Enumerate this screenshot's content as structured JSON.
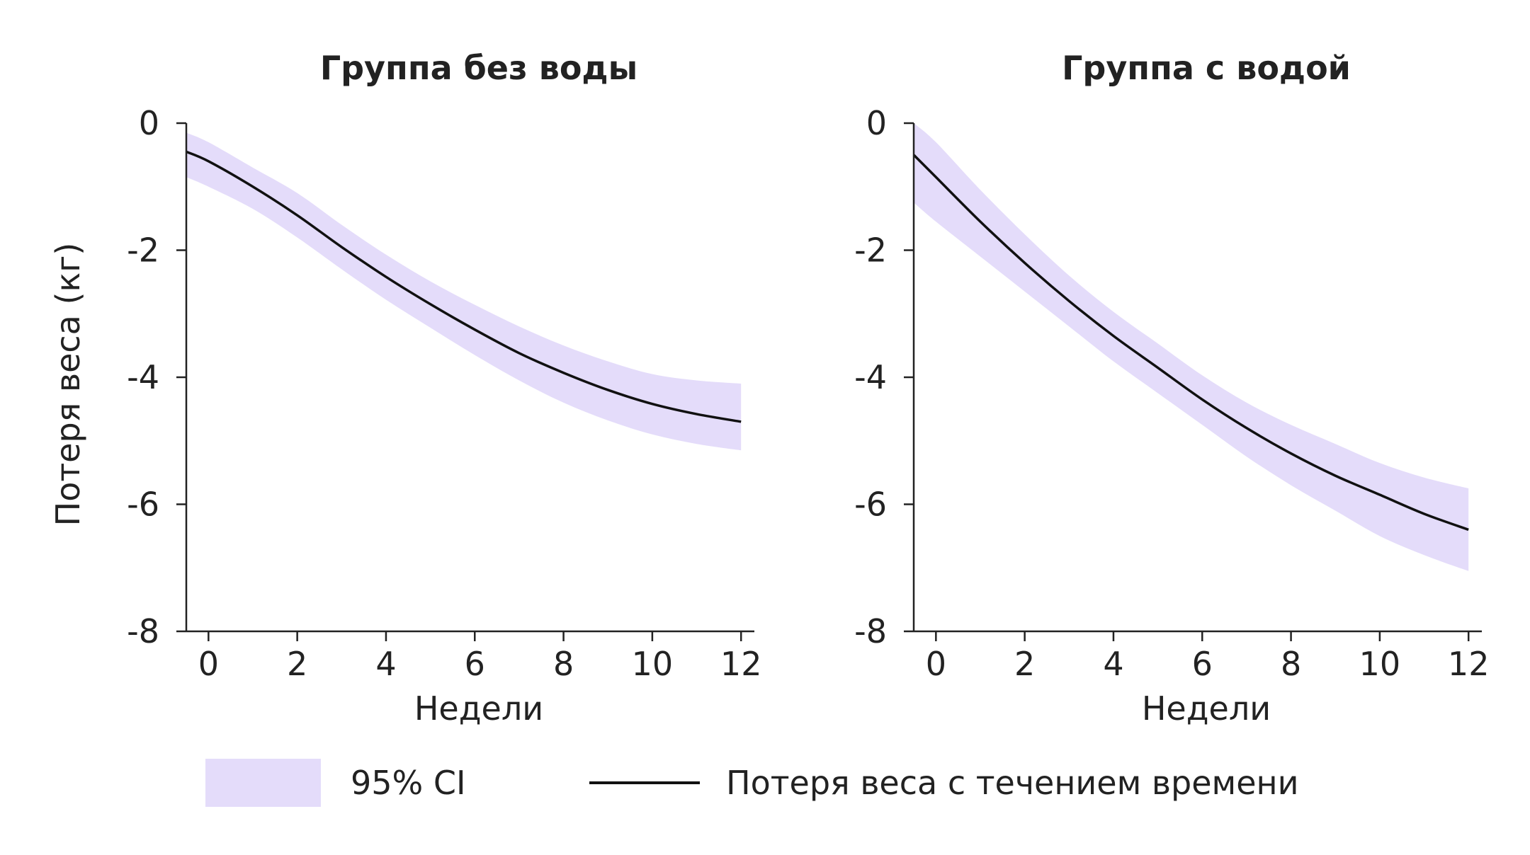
{
  "chart_data": [
    {
      "type": "line",
      "title": "Группа без воды",
      "xlabel": "Недели",
      "ylabel": "Потеря веса (кг)",
      "xlim": [
        -0.5,
        12.3
      ],
      "ylim": [
        -8,
        0
      ],
      "xticks": [
        "0",
        "2",
        "4",
        "6",
        "8",
        "10",
        "12"
      ],
      "yticks": [
        "0",
        "-2",
        "-4",
        "-6",
        "-8"
      ],
      "grid": false,
      "series": [
        {
          "name": "Потеря веса с течением времени",
          "x": [
            -0.5,
            0,
            1,
            2,
            3,
            4,
            5,
            6,
            7,
            8,
            9,
            10,
            11,
            12
          ],
          "y": [
            -0.45,
            -0.6,
            -1.0,
            -1.45,
            -1.95,
            -2.42,
            -2.85,
            -3.25,
            -3.62,
            -3.93,
            -4.2,
            -4.42,
            -4.58,
            -4.7
          ],
          "ci_lower": [
            -0.85,
            -1.0,
            -1.35,
            -1.8,
            -2.3,
            -2.78,
            -3.22,
            -3.65,
            -4.05,
            -4.4,
            -4.68,
            -4.9,
            -5.05,
            -5.15
          ],
          "ci_upper": [
            -0.15,
            -0.3,
            -0.7,
            -1.1,
            -1.6,
            -2.07,
            -2.49,
            -2.86,
            -3.2,
            -3.5,
            -3.75,
            -3.95,
            -4.05,
            -4.1
          ]
        }
      ]
    },
    {
      "type": "line",
      "title": "Группа с водой",
      "xlabel": "Недели",
      "ylabel": "",
      "xlim": [
        -0.5,
        12.3
      ],
      "ylim": [
        -8,
        0
      ],
      "xticks": [
        "0",
        "2",
        "4",
        "6",
        "8",
        "10",
        "12"
      ],
      "yticks": [
        "0",
        "-2",
        "-4",
        "-6",
        "-8"
      ],
      "grid": false,
      "series": [
        {
          "name": "Потеря веса с течением времени",
          "x": [
            -0.5,
            0,
            1,
            2,
            3,
            4,
            5,
            6,
            7,
            8,
            9,
            10,
            11,
            12
          ],
          "y": [
            -0.5,
            -0.85,
            -1.55,
            -2.2,
            -2.8,
            -3.35,
            -3.85,
            -4.35,
            -4.8,
            -5.2,
            -5.55,
            -5.85,
            -6.15,
            -6.4
          ],
          "ci_lower": [
            -1.25,
            -1.55,
            -2.1,
            -2.65,
            -3.2,
            -3.75,
            -4.25,
            -4.75,
            -5.25,
            -5.7,
            -6.1,
            -6.5,
            -6.8,
            -7.05
          ],
          "ci_upper": [
            0.0,
            -0.3,
            -1.05,
            -1.75,
            -2.4,
            -2.97,
            -3.47,
            -3.97,
            -4.4,
            -4.75,
            -5.05,
            -5.35,
            -5.58,
            -5.75
          ]
        }
      ]
    }
  ],
  "legend": {
    "position": "bottom",
    "ci_label": "95% CI",
    "line_label": "Потеря веса с течением времени"
  },
  "colors": {
    "ci_fill": "#e4dcfa",
    "line": "#111111",
    "axis": "#222222",
    "text": "#222222"
  }
}
